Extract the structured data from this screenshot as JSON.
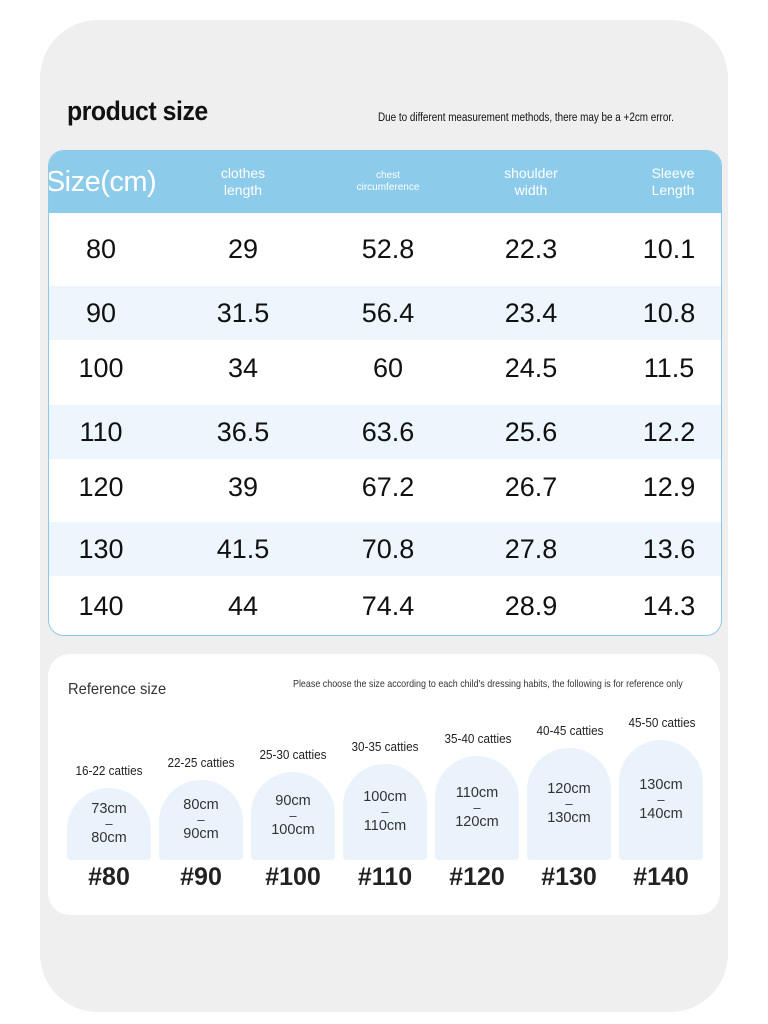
{
  "page": {
    "title": "product size",
    "note": "Due to different measurement methods, there may be a +2cm error."
  },
  "size_table": {
    "headers": {
      "size": "Size(cm)",
      "clothes_length": [
        "clothes",
        "length"
      ],
      "chest_circumference": [
        "chest",
        "circumference"
      ],
      "shoulder_width": [
        "shoulder",
        "width"
      ],
      "sleeve_length": [
        "Sleeve",
        "Length"
      ]
    },
    "rows": [
      {
        "size": "80",
        "clothes_length": "29",
        "chest": "52.8",
        "shoulder": "22.3",
        "sleeve": "10.1"
      },
      {
        "size": "90",
        "clothes_length": "31.5",
        "chest": "56.4",
        "shoulder": "23.4",
        "sleeve": "10.8"
      },
      {
        "size": "100",
        "clothes_length": "34",
        "chest": "60",
        "shoulder": "24.5",
        "sleeve": "11.5"
      },
      {
        "size": "110",
        "clothes_length": "36.5",
        "chest": "63.6",
        "shoulder": "25.6",
        "sleeve": "12.2"
      },
      {
        "size": "120",
        "clothes_length": "39",
        "chest": "67.2",
        "shoulder": "26.7",
        "sleeve": "12.9"
      },
      {
        "size": "130",
        "clothes_length": "41.5",
        "chest": "70.8",
        "shoulder": "27.8",
        "sleeve": "13.6"
      },
      {
        "size": "140",
        "clothes_length": "44",
        "chest": "74.4",
        "shoulder": "28.9",
        "sleeve": "14.3"
      }
    ]
  },
  "reference": {
    "title": "Reference size",
    "note": "Please choose the size according to each child's dressing habits, the following is for reference only",
    "items": [
      {
        "weight": "16-22 catties",
        "height_from": "73cm",
        "dash": "–",
        "height_to": "80cm",
        "label": "#80"
      },
      {
        "weight": "22-25 catties",
        "height_from": "80cm",
        "dash": "–",
        "height_to": "90cm",
        "label": "#90"
      },
      {
        "weight": "25-30 catties",
        "height_from": "90cm",
        "dash": "–",
        "height_to": "100cm",
        "label": "#100"
      },
      {
        "weight": "30-35 catties",
        "height_from": "100cm",
        "dash": "–",
        "height_to": "110cm",
        "label": "#110"
      },
      {
        "weight": "35-40 catties",
        "height_from": "110cm",
        "dash": "–",
        "height_to": "120cm",
        "label": "#120"
      },
      {
        "weight": "40-45 catties",
        "height_from": "120cm",
        "dash": "–",
        "height_to": "130cm",
        "label": "#130"
      },
      {
        "weight": "45-50 catties",
        "height_from": "130cm",
        "dash": "–",
        "height_to": "140cm",
        "label": "#140"
      }
    ]
  }
}
